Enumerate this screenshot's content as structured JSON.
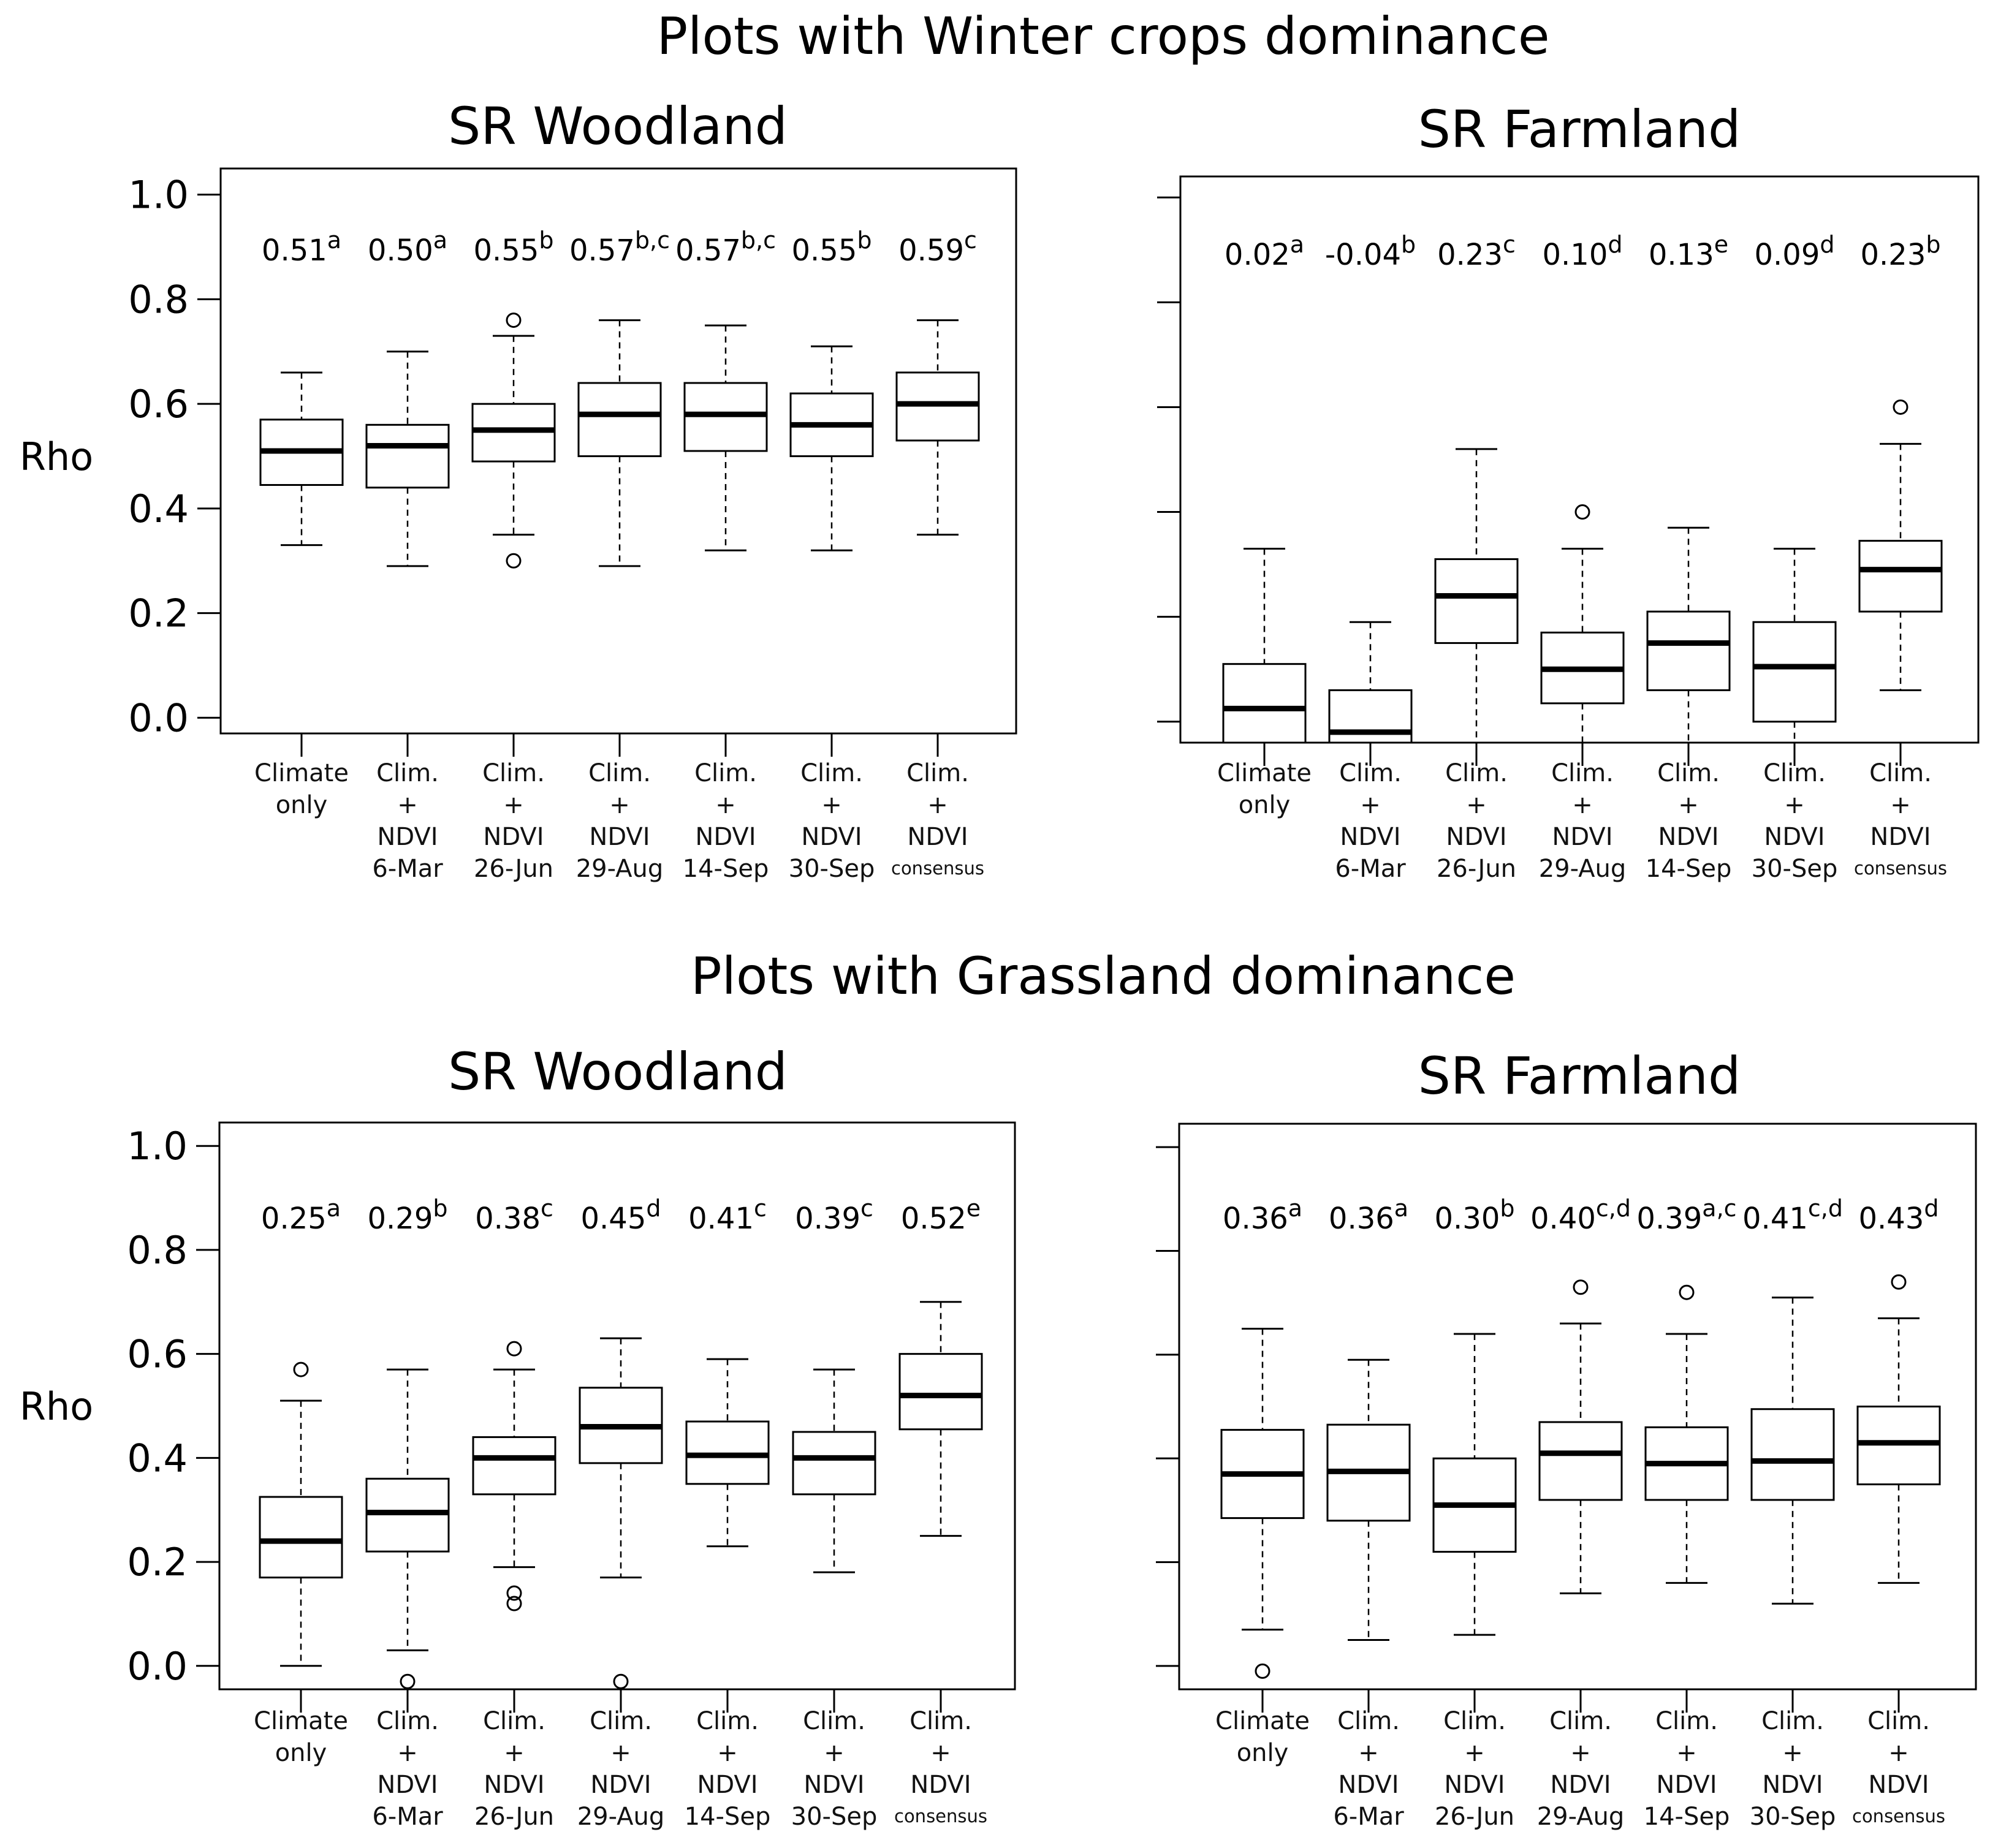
{
  "sections": [
    {
      "title": "Plots with Winter crops dominance"
    },
    {
      "title": "Plots with Grassland dominance"
    }
  ],
  "categories": [
    [
      "Climate",
      "only"
    ],
    [
      "Clim.",
      "+",
      "NDVI",
      "6-Mar"
    ],
    [
      "Clim.",
      "+",
      "NDVI",
      "26-Jun"
    ],
    [
      "Clim.",
      "+",
      "NDVI",
      "29-Aug"
    ],
    [
      "Clim.",
      "+",
      "NDVI",
      "14-Sep"
    ],
    [
      "Clim.",
      "+",
      "NDVI",
      "30-Sep"
    ],
    [
      "Clim.",
      "+",
      "NDVI",
      "consensus"
    ]
  ],
  "chart_data": [
    {
      "type": "boxplot",
      "section": "Plots with Winter crops dominance",
      "title": "SR Woodland",
      "ylabel": "Rho",
      "ylim": [
        -0.03,
        1.05
      ],
      "yticks": [
        "0.0",
        "0.2",
        "0.4",
        "0.6",
        "0.8",
        "1.0"
      ],
      "show_tick_labels": true,
      "labels": [
        {
          "value": "0.51",
          "sup": "a"
        },
        {
          "value": "0.50",
          "sup": "a"
        },
        {
          "value": "0.55",
          "sup": "b"
        },
        {
          "value": "0.57",
          "sup": "b,c"
        },
        {
          "value": "0.57",
          "sup": "b,c"
        },
        {
          "value": "0.55",
          "sup": "b"
        },
        {
          "value": "0.59",
          "sup": "c"
        }
      ],
      "boxes": [
        {
          "min": 0.33,
          "q1": 0.445,
          "median": 0.51,
          "q3": 0.57,
          "max": 0.66,
          "outliers": []
        },
        {
          "min": 0.29,
          "q1": 0.44,
          "median": 0.52,
          "q3": 0.56,
          "max": 0.7,
          "outliers": []
        },
        {
          "min": 0.35,
          "q1": 0.49,
          "median": 0.55,
          "q3": 0.6,
          "max": 0.73,
          "outliers": [
            0.76,
            0.3
          ]
        },
        {
          "min": 0.29,
          "q1": 0.5,
          "median": 0.58,
          "q3": 0.64,
          "max": 0.76,
          "outliers": []
        },
        {
          "min": 0.32,
          "q1": 0.51,
          "median": 0.58,
          "q3": 0.64,
          "max": 0.75,
          "outliers": []
        },
        {
          "min": 0.32,
          "q1": 0.5,
          "median": 0.56,
          "q3": 0.62,
          "max": 0.71,
          "outliers": []
        },
        {
          "min": 0.35,
          "q1": 0.53,
          "median": 0.6,
          "q3": 0.66,
          "max": 0.76,
          "outliers": []
        }
      ]
    },
    {
      "type": "boxplot",
      "section": "Plots with Winter crops dominance",
      "title": "SR Farmland",
      "ylabel": "",
      "ylim": [
        -0.04,
        1.04
      ],
      "yticks": [
        "0.0",
        "0.2",
        "0.4",
        "0.6",
        "0.8",
        "1.0"
      ],
      "show_tick_labels": false,
      "labels": [
        {
          "value": "0.02",
          "sup": "a"
        },
        {
          "value": "-0.04",
          "sup": "b"
        },
        {
          "value": "0.23",
          "sup": "c"
        },
        {
          "value": "0.10",
          "sup": "d"
        },
        {
          "value": "0.13",
          "sup": "e"
        },
        {
          "value": "0.09",
          "sup": "d"
        },
        {
          "value": "0.23",
          "sup": "b"
        }
      ],
      "boxes": [
        {
          "min": -0.04,
          "q1": -0.04,
          "median": 0.025,
          "q3": 0.11,
          "max": 0.33,
          "outliers": []
        },
        {
          "min": -0.04,
          "q1": -0.04,
          "median": -0.02,
          "q3": 0.06,
          "max": 0.19,
          "outliers": []
        },
        {
          "min": -0.04,
          "q1": 0.15,
          "median": 0.24,
          "q3": 0.31,
          "max": 0.52,
          "outliers": []
        },
        {
          "min": -0.04,
          "q1": 0.035,
          "median": 0.1,
          "q3": 0.17,
          "max": 0.33,
          "outliers": [
            0.4
          ]
        },
        {
          "min": -0.04,
          "q1": 0.06,
          "median": 0.15,
          "q3": 0.21,
          "max": 0.37,
          "outliers": []
        },
        {
          "min": -0.04,
          "q1": 0.0,
          "median": 0.105,
          "q3": 0.19,
          "max": 0.33,
          "outliers": []
        },
        {
          "min": 0.06,
          "q1": 0.21,
          "median": 0.29,
          "q3": 0.345,
          "max": 0.53,
          "outliers": [
            0.6
          ]
        }
      ]
    },
    {
      "type": "boxplot",
      "section": "Plots with Grassland dominance",
      "title": "SR Woodland",
      "ylabel": "Rho",
      "ylim": [
        -0.045,
        1.045
      ],
      "yticks": [
        "0.0",
        "0.2",
        "0.4",
        "0.6",
        "0.8",
        "1.0"
      ],
      "show_tick_labels": true,
      "labels": [
        {
          "value": "0.25",
          "sup": "a"
        },
        {
          "value": "0.29",
          "sup": "b"
        },
        {
          "value": "0.38",
          "sup": "c"
        },
        {
          "value": "0.45",
          "sup": "d"
        },
        {
          "value": "0.41",
          "sup": "c"
        },
        {
          "value": "0.39",
          "sup": "c"
        },
        {
          "value": "0.52",
          "sup": "e"
        }
      ],
      "boxes": [
        {
          "min": 0.0,
          "q1": 0.17,
          "median": 0.24,
          "q3": 0.325,
          "max": 0.51,
          "outliers": [
            0.57
          ]
        },
        {
          "min": 0.03,
          "q1": 0.22,
          "median": 0.295,
          "q3": 0.36,
          "max": 0.57,
          "outliers": [
            -0.03
          ]
        },
        {
          "min": 0.19,
          "q1": 0.33,
          "median": 0.4,
          "q3": 0.44,
          "max": 0.57,
          "outliers": [
            0.61,
            0.14,
            0.12
          ]
        },
        {
          "min": 0.17,
          "q1": 0.39,
          "median": 0.46,
          "q3": 0.535,
          "max": 0.63,
          "outliers": [
            -0.03
          ]
        },
        {
          "min": 0.23,
          "q1": 0.35,
          "median": 0.405,
          "q3": 0.47,
          "max": 0.59,
          "outliers": []
        },
        {
          "min": 0.18,
          "q1": 0.33,
          "median": 0.4,
          "q3": 0.45,
          "max": 0.57,
          "outliers": []
        },
        {
          "min": 0.25,
          "q1": 0.455,
          "median": 0.52,
          "q3": 0.6,
          "max": 0.7,
          "outliers": []
        }
      ]
    },
    {
      "type": "boxplot",
      "section": "Plots with Grassland dominance",
      "title": "SR Farmland",
      "ylabel": "",
      "ylim": [
        -0.045,
        1.045
      ],
      "yticks": [
        "0.0",
        "0.2",
        "0.4",
        "0.6",
        "0.8",
        "1.0"
      ],
      "show_tick_labels": false,
      "labels": [
        {
          "value": "0.36",
          "sup": "a"
        },
        {
          "value": "0.36",
          "sup": "a"
        },
        {
          "value": "0.30",
          "sup": "b"
        },
        {
          "value": "0.40",
          "sup": "c,d"
        },
        {
          "value": "0.39",
          "sup": "a,c"
        },
        {
          "value": "0.41",
          "sup": "c,d"
        },
        {
          "value": "0.43",
          "sup": "d"
        }
      ],
      "boxes": [
        {
          "min": 0.07,
          "q1": 0.285,
          "median": 0.37,
          "q3": 0.455,
          "max": 0.65,
          "outliers": [
            -0.01
          ]
        },
        {
          "min": 0.05,
          "q1": 0.28,
          "median": 0.375,
          "q3": 0.465,
          "max": 0.59,
          "outliers": []
        },
        {
          "min": 0.06,
          "q1": 0.22,
          "median": 0.31,
          "q3": 0.4,
          "max": 0.64,
          "outliers": []
        },
        {
          "min": 0.14,
          "q1": 0.32,
          "median": 0.41,
          "q3": 0.47,
          "max": 0.66,
          "outliers": [
            0.73
          ]
        },
        {
          "min": 0.16,
          "q1": 0.32,
          "median": 0.39,
          "q3": 0.46,
          "max": 0.64,
          "outliers": [
            0.72
          ]
        },
        {
          "min": 0.12,
          "q1": 0.32,
          "median": 0.395,
          "q3": 0.495,
          "max": 0.71,
          "outliers": []
        },
        {
          "min": 0.16,
          "q1": 0.35,
          "median": 0.43,
          "q3": 0.5,
          "max": 0.67,
          "outliers": [
            0.74
          ]
        }
      ]
    }
  ]
}
